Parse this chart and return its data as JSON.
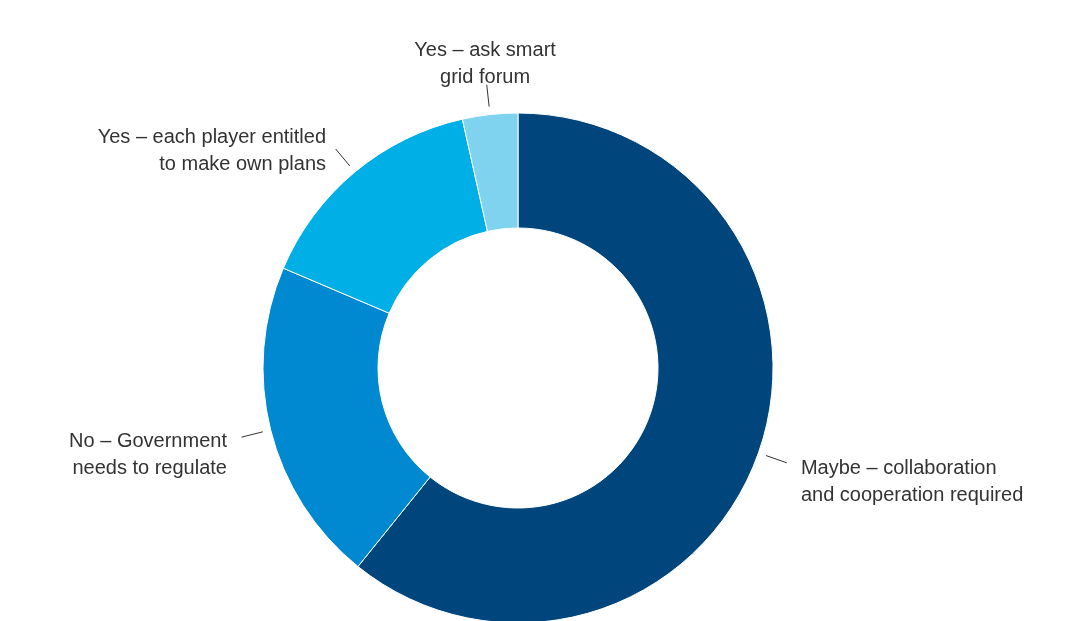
{
  "chart_data": {
    "type": "donut",
    "categories": [
      "Maybe – collaboration\nand cooperation required",
      "No – Government\nneeds to regulate",
      "Yes – each player entitled\nto make own plans",
      "Yes – ask smart\ngrid forum"
    ],
    "values": [
      60.8,
      20.6,
      15.1,
      3.5
    ],
    "colors": [
      "#00457c",
      "#0089d0",
      "#00afe6",
      "#7fd3ee"
    ]
  }
}
